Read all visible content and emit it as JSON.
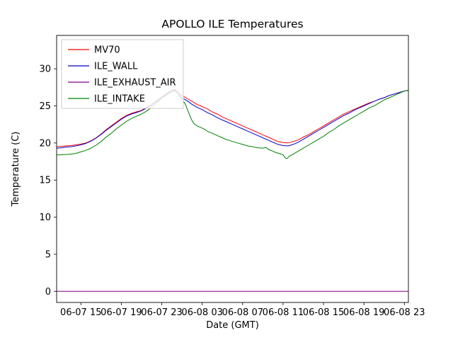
{
  "title": "APOLLO ILE Temperatures",
  "chart_data": {
    "type": "line",
    "title": "APOLLO ILE Temperatures",
    "xlabel": "Date (GMT)",
    "ylabel": "Temperature (C)",
    "xlim": [
      12.6,
      47.4
    ],
    "ylim": [
      -1.5,
      34.5
    ],
    "grid": false,
    "legend_position": "upper left",
    "xticks": [
      {
        "value": 15,
        "label": "06-07 15"
      },
      {
        "value": 19,
        "label": "06-07 19"
      },
      {
        "value": 23,
        "label": "06-07 23"
      },
      {
        "value": 27,
        "label": "06-08 03"
      },
      {
        "value": 31,
        "label": "06-08 07"
      },
      {
        "value": 35,
        "label": "06-08 11"
      },
      {
        "value": 39,
        "label": "06-08 15"
      },
      {
        "value": 43,
        "label": "06-08 19"
      },
      {
        "value": 47,
        "label": "06-08 23"
      }
    ],
    "yticks": [
      0,
      5,
      10,
      15,
      20,
      25,
      30
    ],
    "series": [
      {
        "name": "MV70",
        "color": "#ff0000",
        "points": [
          [
            12.6,
            19.5
          ],
          [
            13,
            19.55
          ],
          [
            13.5,
            19.6
          ],
          [
            14,
            19.65
          ],
          [
            14.5,
            19.75
          ],
          [
            15,
            19.85
          ],
          [
            15.5,
            20.0
          ],
          [
            16,
            20.3
          ],
          [
            16.5,
            20.7
          ],
          [
            17,
            21.2
          ],
          [
            17.5,
            21.8
          ],
          [
            18,
            22.3
          ],
          [
            18.5,
            22.8
          ],
          [
            19,
            23.3
          ],
          [
            19.5,
            23.7
          ],
          [
            20,
            24.0
          ],
          [
            20.5,
            24.2
          ],
          [
            21,
            24.4
          ],
          [
            21.5,
            24.8
          ],
          [
            22,
            25.2
          ],
          [
            22.5,
            25.7
          ],
          [
            23,
            26.2
          ],
          [
            23.5,
            26.7
          ],
          [
            24,
            27.1
          ],
          [
            24.3,
            27.2
          ],
          [
            24.6,
            26.9
          ],
          [
            25,
            26.4
          ],
          [
            25.5,
            26.0
          ],
          [
            26,
            25.6
          ],
          [
            26.5,
            25.2
          ],
          [
            27,
            24.9
          ],
          [
            27.5,
            24.6
          ],
          [
            28,
            24.2
          ],
          [
            28.5,
            23.9
          ],
          [
            29,
            23.5
          ],
          [
            29.5,
            23.2
          ],
          [
            30,
            22.9
          ],
          [
            30.5,
            22.6
          ],
          [
            31,
            22.3
          ],
          [
            31.5,
            22.0
          ],
          [
            32,
            21.7
          ],
          [
            32.5,
            21.4
          ],
          [
            33,
            21.1
          ],
          [
            33.5,
            20.8
          ],
          [
            34,
            20.5
          ],
          [
            34.5,
            20.2
          ],
          [
            35,
            20.05
          ],
          [
            35.5,
            20.0
          ],
          [
            36,
            20.2
          ],
          [
            36.5,
            20.4
          ],
          [
            37,
            20.8
          ],
          [
            37.5,
            21.1
          ],
          [
            38,
            21.5
          ],
          [
            38.5,
            21.9
          ],
          [
            39,
            22.3
          ],
          [
            39.5,
            22.7
          ],
          [
            40,
            23.1
          ],
          [
            40.5,
            23.5
          ],
          [
            41,
            23.9
          ],
          [
            41.5,
            24.2
          ],
          [
            42,
            24.5
          ],
          [
            42.5,
            24.8
          ],
          [
            43,
            25.1
          ],
          [
            43.5,
            25.4
          ],
          [
            44,
            25.6
          ],
          [
            44.5,
            25.9
          ],
          [
            45,
            26.1
          ],
          [
            45.5,
            26.4
          ],
          [
            46,
            26.6
          ],
          [
            46.5,
            26.8
          ],
          [
            47,
            27.0
          ],
          [
            47.4,
            27.1
          ]
        ]
      },
      {
        "name": "ILE_WALL",
        "color": "#0000cc",
        "points": [
          [
            12.6,
            19.3
          ],
          [
            13,
            19.35
          ],
          [
            13.5,
            19.45
          ],
          [
            14,
            19.5
          ],
          [
            14.5,
            19.6
          ],
          [
            15,
            19.75
          ],
          [
            15.5,
            19.95
          ],
          [
            16,
            20.25
          ],
          [
            16.5,
            20.65
          ],
          [
            17,
            21.15
          ],
          [
            17.5,
            21.7
          ],
          [
            18,
            22.2
          ],
          [
            18.5,
            22.7
          ],
          [
            19,
            23.2
          ],
          [
            19.5,
            23.6
          ],
          [
            20,
            23.9
          ],
          [
            20.5,
            24.1
          ],
          [
            21,
            24.35
          ],
          [
            21.5,
            24.7
          ],
          [
            22,
            25.1
          ],
          [
            22.5,
            25.6
          ],
          [
            23,
            26.1
          ],
          [
            23.5,
            26.6
          ],
          [
            24,
            27.05
          ],
          [
            24.3,
            27.1
          ],
          [
            24.6,
            26.7
          ],
          [
            25,
            26.1
          ],
          [
            25.5,
            25.7
          ],
          [
            26,
            25.2
          ],
          [
            26.5,
            24.8
          ],
          [
            27,
            24.5
          ],
          [
            27.5,
            24.1
          ],
          [
            28,
            23.8
          ],
          [
            28.5,
            23.4
          ],
          [
            29,
            23.1
          ],
          [
            29.5,
            22.8
          ],
          [
            30,
            22.5
          ],
          [
            30.5,
            22.2
          ],
          [
            31,
            21.9
          ],
          [
            31.5,
            21.6
          ],
          [
            32,
            21.3
          ],
          [
            32.5,
            21.0
          ],
          [
            33,
            20.7
          ],
          [
            33.5,
            20.4
          ],
          [
            34,
            20.1
          ],
          [
            34.5,
            19.8
          ],
          [
            35,
            19.65
          ],
          [
            35.5,
            19.6
          ],
          [
            36,
            19.8
          ],
          [
            36.5,
            20.1
          ],
          [
            37,
            20.5
          ],
          [
            37.5,
            20.9
          ],
          [
            38,
            21.3
          ],
          [
            38.5,
            21.7
          ],
          [
            39,
            22.1
          ],
          [
            39.5,
            22.5
          ],
          [
            40,
            22.9
          ],
          [
            40.5,
            23.3
          ],
          [
            41,
            23.7
          ],
          [
            41.5,
            24.0
          ],
          [
            42,
            24.4
          ],
          [
            42.5,
            24.7
          ],
          [
            43,
            25.0
          ],
          [
            43.5,
            25.3
          ],
          [
            44,
            25.6
          ],
          [
            44.5,
            25.9
          ],
          [
            45,
            26.1
          ],
          [
            45.5,
            26.4
          ],
          [
            46,
            26.6
          ],
          [
            46.5,
            26.8
          ],
          [
            47,
            27.0
          ],
          [
            47.4,
            27.1
          ]
        ]
      },
      {
        "name": "ILE_EXHAUST_AIR",
        "color": "#800080",
        "points": [
          [
            12.6,
            0
          ],
          [
            47.4,
            0
          ]
        ]
      },
      {
        "name": "ILE_INTAKE",
        "color": "#008000",
        "points": [
          [
            12.6,
            18.4
          ],
          [
            13,
            18.4
          ],
          [
            13.5,
            18.45
          ],
          [
            14,
            18.5
          ],
          [
            14.5,
            18.6
          ],
          [
            15,
            18.8
          ],
          [
            15.5,
            19.0
          ],
          [
            16,
            19.3
          ],
          [
            16.5,
            19.7
          ],
          [
            17,
            20.2
          ],
          [
            17.5,
            20.8
          ],
          [
            18,
            21.3
          ],
          [
            18.5,
            21.9
          ],
          [
            19,
            22.4
          ],
          [
            19.5,
            22.9
          ],
          [
            20,
            23.3
          ],
          [
            20.5,
            23.6
          ],
          [
            21,
            23.9
          ],
          [
            21.5,
            24.3
          ],
          [
            22,
            24.8
          ],
          [
            22.5,
            25.4
          ],
          [
            23,
            26.0
          ],
          [
            23.5,
            26.5
          ],
          [
            24,
            26.9
          ],
          [
            24.3,
            27.0
          ],
          [
            24.6,
            26.6
          ],
          [
            25,
            25.9
          ],
          [
            25.3,
            25.3
          ],
          [
            25.6,
            24.3
          ],
          [
            25.8,
            23.6
          ],
          [
            26,
            23.0
          ],
          [
            26.2,
            22.6
          ],
          [
            26.5,
            22.3
          ],
          [
            27,
            22.0
          ],
          [
            27.3,
            21.8
          ],
          [
            27.6,
            21.5
          ],
          [
            28,
            21.3
          ],
          [
            28.5,
            21.0
          ],
          [
            29,
            20.7
          ],
          [
            29.3,
            20.5
          ],
          [
            29.6,
            20.4
          ],
          [
            30,
            20.2
          ],
          [
            30.5,
            20.0
          ],
          [
            31,
            19.8
          ],
          [
            31.5,
            19.6
          ],
          [
            32,
            19.5
          ],
          [
            32.3,
            19.4
          ],
          [
            32.6,
            19.35
          ],
          [
            33,
            19.3
          ],
          [
            33.3,
            19.4
          ],
          [
            33.6,
            19.1
          ],
          [
            34,
            18.9
          ],
          [
            34.3,
            18.7
          ],
          [
            34.6,
            18.6
          ],
          [
            35,
            18.4
          ],
          [
            35.2,
            18.0
          ],
          [
            35.4,
            17.9
          ],
          [
            35.6,
            18.2
          ],
          [
            36,
            18.5
          ],
          [
            36.5,
            18.9
          ],
          [
            37,
            19.3
          ],
          [
            37.5,
            19.7
          ],
          [
            38,
            20.1
          ],
          [
            38.5,
            20.5
          ],
          [
            39,
            20.9
          ],
          [
            39.5,
            21.4
          ],
          [
            40,
            21.8
          ],
          [
            40.5,
            22.3
          ],
          [
            41,
            22.7
          ],
          [
            41.5,
            23.1
          ],
          [
            42,
            23.5
          ],
          [
            42.5,
            23.9
          ],
          [
            43,
            24.3
          ],
          [
            43.5,
            24.7
          ],
          [
            44,
            25.0
          ],
          [
            44.5,
            25.4
          ],
          [
            45,
            25.8
          ],
          [
            45.5,
            26.1
          ],
          [
            46,
            26.4
          ],
          [
            46.5,
            26.7
          ],
          [
            47,
            27.0
          ],
          [
            47.4,
            27.1
          ]
        ]
      }
    ]
  }
}
